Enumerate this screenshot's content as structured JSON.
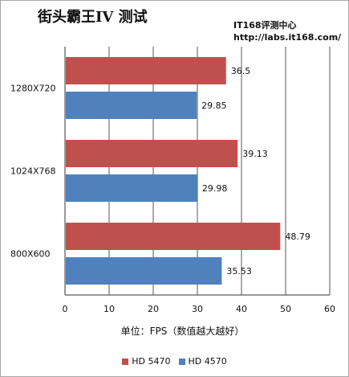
{
  "title": "街头霸王IV 测试",
  "watermark": {
    "line1": "IT168评测中心",
    "line2": "http://labs.it168.com/"
  },
  "colors": {
    "HD 5470": "#c0504d",
    "HD 4570": "#4f81bd",
    "grid": "#555555",
    "axis": "#333333"
  },
  "chart_data": {
    "type": "bar",
    "orientation": "horizontal",
    "categories": [
      "1280X720",
      "1024X768",
      "800X600"
    ],
    "series": [
      {
        "name": "HD 5470",
        "values": [
          36.5,
          39.13,
          48.79
        ]
      },
      {
        "name": "HD 4570",
        "values": [
          29.85,
          29.98,
          35.53
        ]
      }
    ],
    "value_labels": {
      "HD 5470": [
        "36.5",
        "39.13",
        "48.79"
      ],
      "HD 4570": [
        "29.85",
        "29.98",
        "35.53"
      ]
    },
    "xlim": [
      0,
      60
    ],
    "x_ticks": [
      0,
      10,
      20,
      30,
      40,
      50,
      60
    ],
    "xlabel": "单位：FPS（数值越大越好）",
    "ylabel": "",
    "grid": "vertical",
    "legend_position": "bottom"
  }
}
